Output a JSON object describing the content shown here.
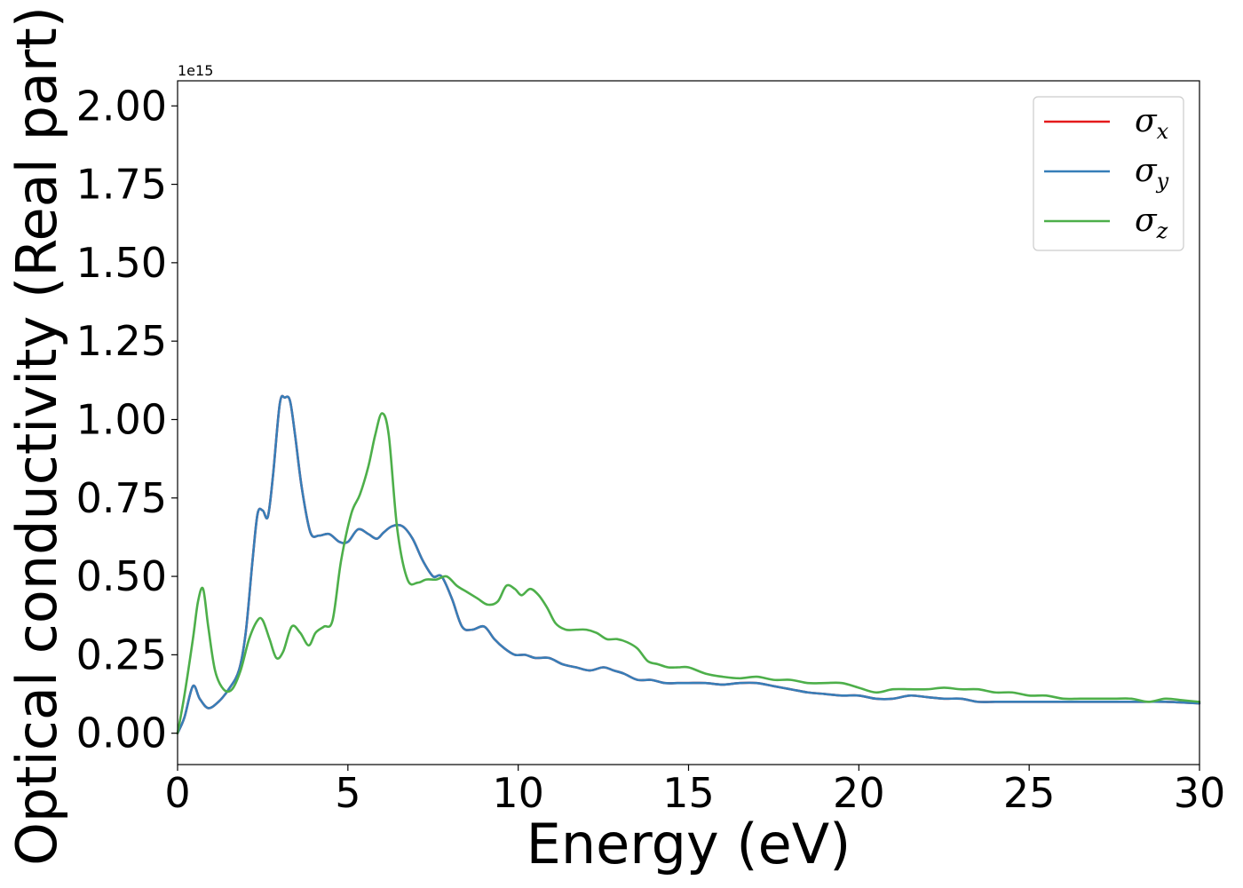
{
  "chart_data": {
    "type": "line",
    "xlabel": "Energy (eV)",
    "ylabel": "Optical conductivity (Real part)",
    "y_offset_label": "1e15",
    "xlim": [
      0,
      30
    ],
    "ylim": [
      -0.1,
      2.08
    ],
    "x_ticks": [
      0,
      5,
      10,
      15,
      20,
      25,
      30
    ],
    "x_tick_labels": [
      "0",
      "5",
      "10",
      "15",
      "20",
      "25",
      "30"
    ],
    "y_ticks": [
      0.0,
      0.25,
      0.5,
      0.75,
      1.0,
      1.25,
      1.5,
      1.75,
      2.0
    ],
    "y_tick_labels": [
      "0.00",
      "0.25",
      "0.50",
      "0.75",
      "1.00",
      "1.25",
      "1.50",
      "1.75",
      "2.00"
    ],
    "legend_position": "top-right",
    "grid": false,
    "series": [
      {
        "name_symbol": "σ",
        "name_subscript": "x",
        "color": "#e41a1c",
        "x": [
          0,
          0.2,
          0.45,
          0.65,
          0.9,
          1.2,
          1.5,
          1.8,
          2.0,
          2.2,
          2.35,
          2.5,
          2.65,
          2.8,
          3.0,
          3.15,
          3.3,
          3.45,
          3.65,
          3.9,
          4.15,
          4.45,
          4.75,
          5.0,
          5.3,
          5.6,
          5.85,
          6.05,
          6.3,
          6.6,
          6.9,
          7.2,
          7.5,
          7.75,
          8.05,
          8.35,
          8.65,
          9.0,
          9.3,
          9.6,
          9.9,
          10.2,
          10.5,
          10.9,
          11.3,
          11.7,
          12.1,
          12.5,
          12.8,
          13.1,
          13.5,
          13.9,
          14.3,
          14.7,
          15.0,
          15.5,
          16.0,
          16.5,
          17.0,
          17.5,
          18.0,
          18.5,
          19.0,
          19.5,
          20.0,
          20.5,
          21.0,
          21.5,
          22.0,
          22.5,
          23.0,
          23.5,
          24.0,
          24.5,
          25.0,
          26.0,
          27.0,
          28.0,
          29.0,
          30.0
        ],
        "y": [
          0.0,
          0.05,
          0.15,
          0.11,
          0.08,
          0.1,
          0.14,
          0.2,
          0.32,
          0.55,
          0.7,
          0.71,
          0.69,
          0.82,
          1.05,
          1.07,
          1.06,
          0.95,
          0.78,
          0.64,
          0.63,
          0.635,
          0.61,
          0.61,
          0.65,
          0.635,
          0.62,
          0.64,
          0.66,
          0.66,
          0.62,
          0.55,
          0.5,
          0.5,
          0.43,
          0.34,
          0.33,
          0.34,
          0.3,
          0.27,
          0.25,
          0.25,
          0.24,
          0.24,
          0.22,
          0.21,
          0.2,
          0.21,
          0.2,
          0.19,
          0.17,
          0.17,
          0.16,
          0.16,
          0.16,
          0.16,
          0.155,
          0.16,
          0.16,
          0.15,
          0.14,
          0.13,
          0.125,
          0.12,
          0.12,
          0.11,
          0.11,
          0.12,
          0.115,
          0.11,
          0.11,
          0.1,
          0.1,
          0.1,
          0.1,
          0.1,
          0.1,
          0.1,
          0.1,
          0.095
        ]
      },
      {
        "name_symbol": "σ",
        "name_subscript": "y",
        "color": "#377eb8",
        "x": [
          0,
          0.2,
          0.45,
          0.65,
          0.9,
          1.2,
          1.5,
          1.8,
          2.0,
          2.2,
          2.35,
          2.5,
          2.65,
          2.8,
          3.0,
          3.15,
          3.3,
          3.45,
          3.65,
          3.9,
          4.15,
          4.45,
          4.75,
          5.0,
          5.3,
          5.6,
          5.85,
          6.05,
          6.3,
          6.6,
          6.9,
          7.2,
          7.5,
          7.75,
          8.05,
          8.35,
          8.65,
          9.0,
          9.3,
          9.6,
          9.9,
          10.2,
          10.5,
          10.9,
          11.3,
          11.7,
          12.1,
          12.5,
          12.8,
          13.1,
          13.5,
          13.9,
          14.3,
          14.7,
          15.0,
          15.5,
          16.0,
          16.5,
          17.0,
          17.5,
          18.0,
          18.5,
          19.0,
          19.5,
          20.0,
          20.5,
          21.0,
          21.5,
          22.0,
          22.5,
          23.0,
          23.5,
          24.0,
          24.5,
          25.0,
          26.0,
          27.0,
          28.0,
          29.0,
          30.0
        ],
        "y": [
          0.0,
          0.05,
          0.15,
          0.11,
          0.08,
          0.1,
          0.14,
          0.2,
          0.32,
          0.55,
          0.7,
          0.71,
          0.69,
          0.82,
          1.05,
          1.07,
          1.06,
          0.95,
          0.78,
          0.64,
          0.63,
          0.635,
          0.61,
          0.61,
          0.65,
          0.635,
          0.62,
          0.64,
          0.66,
          0.66,
          0.62,
          0.55,
          0.5,
          0.5,
          0.43,
          0.34,
          0.33,
          0.34,
          0.3,
          0.27,
          0.25,
          0.25,
          0.24,
          0.24,
          0.22,
          0.21,
          0.2,
          0.21,
          0.2,
          0.19,
          0.17,
          0.17,
          0.16,
          0.16,
          0.16,
          0.16,
          0.155,
          0.16,
          0.16,
          0.15,
          0.14,
          0.13,
          0.125,
          0.12,
          0.12,
          0.11,
          0.11,
          0.12,
          0.115,
          0.11,
          0.11,
          0.1,
          0.1,
          0.1,
          0.1,
          0.1,
          0.1,
          0.1,
          0.1,
          0.095
        ]
      },
      {
        "name_symbol": "σ",
        "name_subscript": "z",
        "color": "#4daf4a",
        "x": [
          0,
          0.2,
          0.45,
          0.6,
          0.75,
          0.9,
          1.1,
          1.35,
          1.6,
          1.85,
          2.1,
          2.35,
          2.5,
          2.7,
          2.9,
          3.1,
          3.35,
          3.6,
          3.85,
          4.05,
          4.3,
          4.55,
          4.8,
          5.1,
          5.35,
          5.6,
          5.8,
          6.0,
          6.2,
          6.45,
          6.75,
          7.05,
          7.3,
          7.6,
          7.9,
          8.2,
          8.5,
          8.8,
          9.1,
          9.4,
          9.65,
          9.9,
          10.1,
          10.35,
          10.6,
          10.85,
          11.1,
          11.4,
          11.7,
          12.0,
          12.3,
          12.6,
          12.9,
          13.2,
          13.5,
          13.8,
          14.1,
          14.4,
          14.7,
          15.0,
          15.5,
          16.0,
          16.5,
          17.0,
          17.5,
          18.0,
          18.5,
          19.0,
          19.5,
          20.0,
          20.5,
          21.0,
          21.5,
          22.0,
          22.5,
          23.0,
          23.5,
          24.0,
          24.5,
          25.0,
          25.5,
          26.0,
          26.5,
          27.0,
          27.5,
          28.0,
          28.5,
          29.0,
          29.5,
          30.0
        ],
        "y": [
          0.0,
          0.12,
          0.3,
          0.42,
          0.46,
          0.34,
          0.2,
          0.14,
          0.14,
          0.2,
          0.3,
          0.36,
          0.36,
          0.3,
          0.24,
          0.26,
          0.34,
          0.32,
          0.28,
          0.32,
          0.34,
          0.36,
          0.55,
          0.7,
          0.76,
          0.85,
          0.95,
          1.02,
          0.95,
          0.65,
          0.49,
          0.48,
          0.49,
          0.49,
          0.5,
          0.47,
          0.45,
          0.43,
          0.41,
          0.42,
          0.47,
          0.46,
          0.44,
          0.46,
          0.44,
          0.4,
          0.35,
          0.33,
          0.33,
          0.33,
          0.32,
          0.3,
          0.3,
          0.29,
          0.27,
          0.23,
          0.22,
          0.21,
          0.21,
          0.21,
          0.19,
          0.18,
          0.175,
          0.18,
          0.17,
          0.17,
          0.16,
          0.16,
          0.16,
          0.145,
          0.13,
          0.14,
          0.14,
          0.14,
          0.145,
          0.14,
          0.14,
          0.13,
          0.13,
          0.12,
          0.12,
          0.11,
          0.11,
          0.11,
          0.11,
          0.11,
          0.1,
          0.11,
          0.105,
          0.1
        ]
      }
    ]
  }
}
